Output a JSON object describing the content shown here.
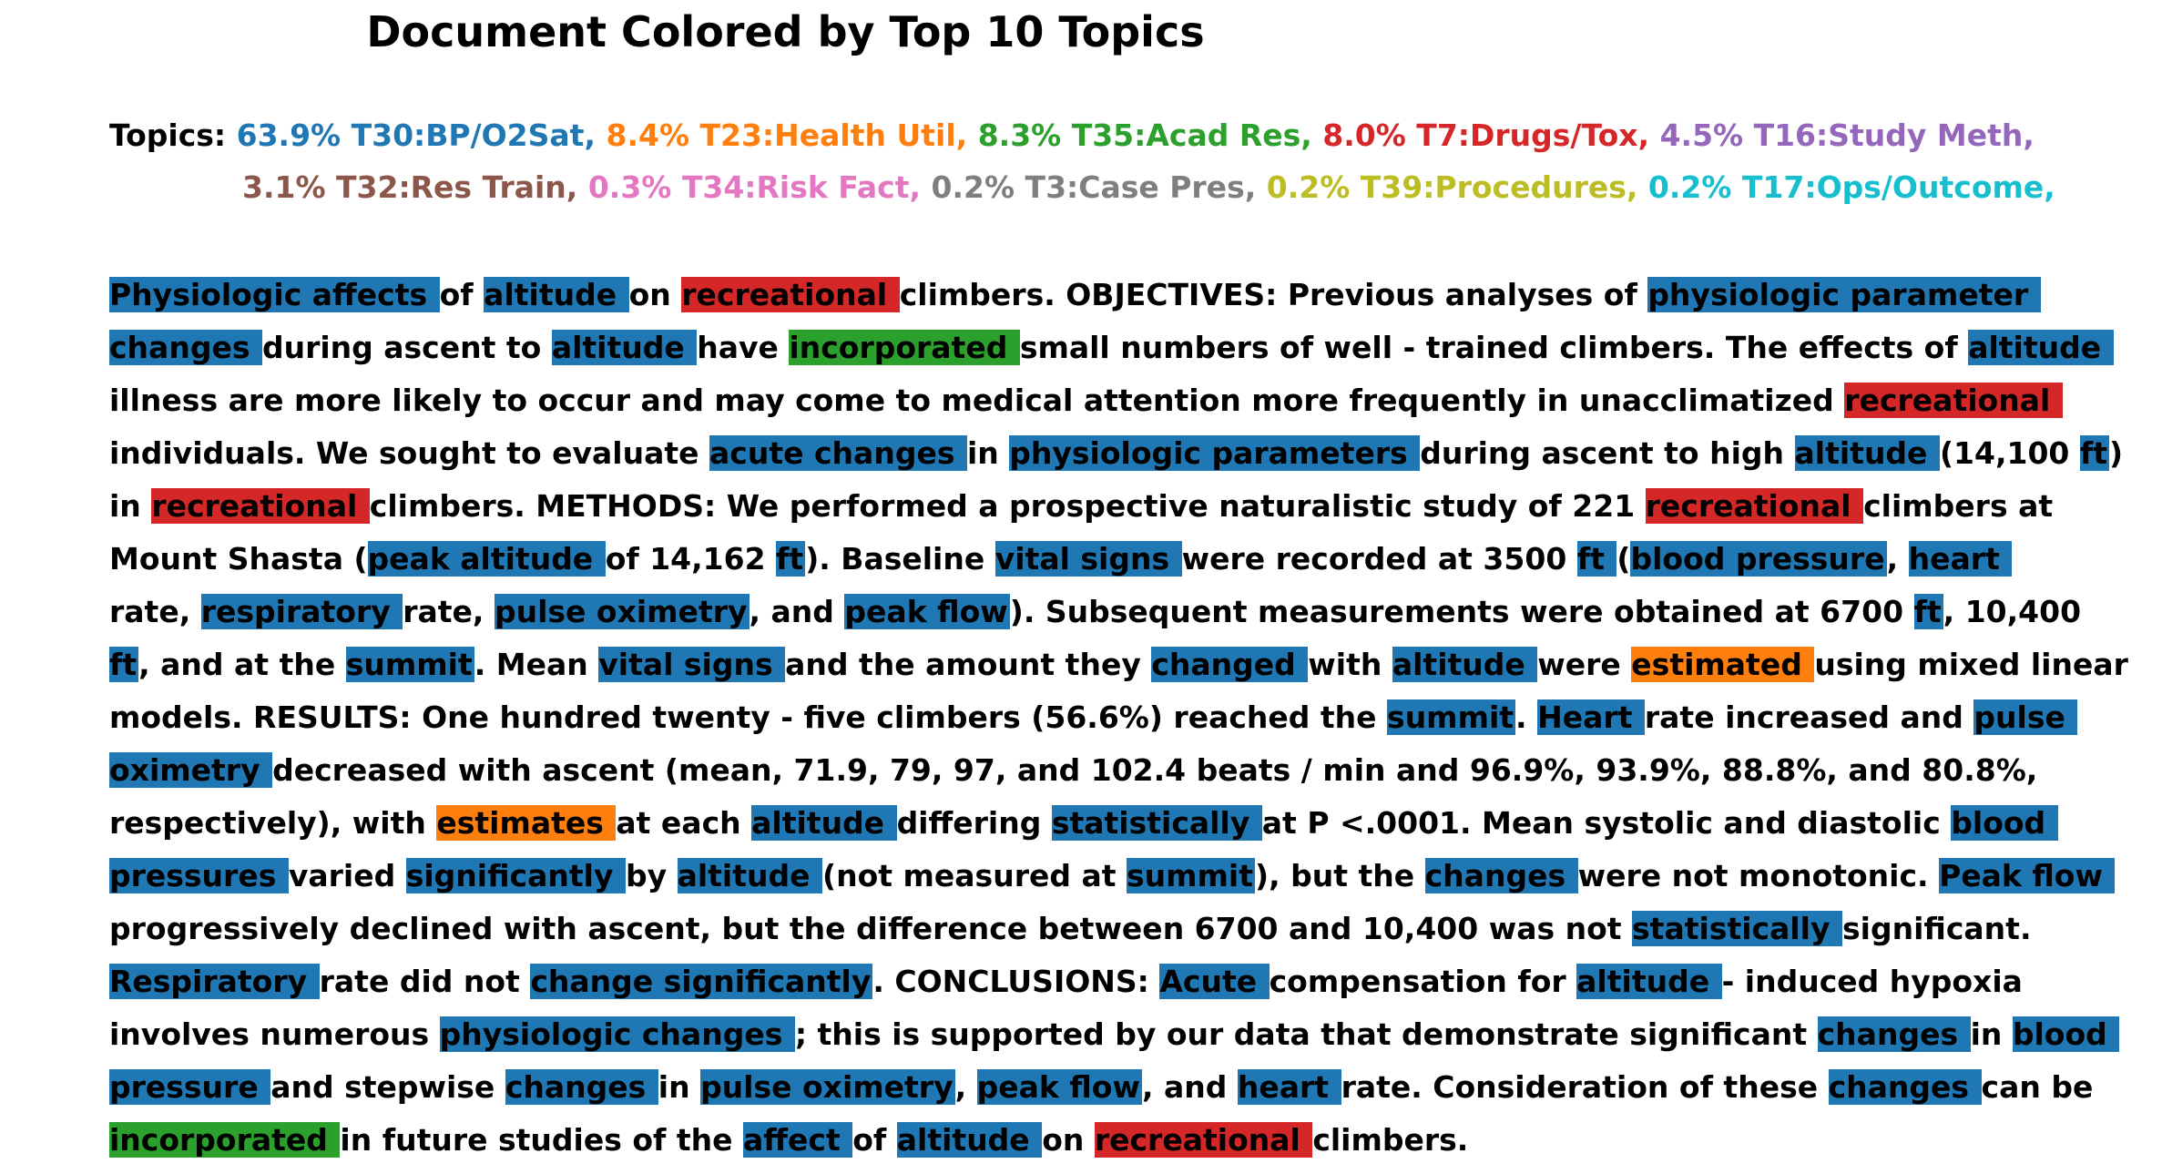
{
  "title": "Document Colored by Top 10 Topics",
  "topics_label": "Topics:",
  "topics_rows": [
    [
      {
        "text": "63.9% T30:BP/O2Sat,",
        "color": "#1f77b4"
      },
      {
        "text": "8.4% T23:Health Util,",
        "color": "#ff7f0e"
      },
      {
        "text": "8.3% T35:Acad Res,",
        "color": "#2ca02c"
      },
      {
        "text": "8.0% T7:Drugs/Tox,",
        "color": "#d62728"
      },
      {
        "text": "4.5% T16:Study Meth,",
        "color": "#9467bd"
      }
    ],
    [
      {
        "text": "3.1% T32:Res Train,",
        "color": "#8c564b"
      },
      {
        "text": "0.3% T34:Risk Fact,",
        "color": "#e377c2"
      },
      {
        "text": "0.2% T3:Case Pres,",
        "color": "#7f7f7f"
      },
      {
        "text": "0.2% T39:Procedures,",
        "color": "#bcbd22"
      },
      {
        "text": "0.2% T17:Ops/Outcome,",
        "color": "#17becf"
      }
    ]
  ],
  "colors": {
    "T30": "#1f77b4",
    "T23": "#ff7f0e",
    "T35": "#2ca02c",
    "T7": "#d62728"
  },
  "document_lines": [
    [
      [
        "Physiologic affects ",
        "T30"
      ],
      [
        "of ",
        ""
      ],
      [
        "altitude ",
        "T30"
      ],
      [
        "on ",
        ""
      ],
      [
        "recreational ",
        "T7"
      ],
      [
        "climbers. OBJECTIVES: Previous analyses of ",
        ""
      ],
      [
        "physiologic parameter ",
        "T30"
      ]
    ],
    [
      [
        "changes ",
        "T30"
      ],
      [
        "during ascent to ",
        ""
      ],
      [
        "altitude ",
        "T30"
      ],
      [
        "have ",
        ""
      ],
      [
        "incorporated ",
        "T35"
      ],
      [
        "small numbers of well - trained climbers. The effects of ",
        ""
      ],
      [
        "altitude ",
        "T30"
      ]
    ],
    [
      [
        "illness are more likely to occur and may come to medical attention more frequently in unacclimatized ",
        ""
      ],
      [
        "recreational ",
        "T7"
      ]
    ],
    [
      [
        "individuals. We sought to evaluate ",
        ""
      ],
      [
        "acute changes ",
        "T30"
      ],
      [
        "in ",
        ""
      ],
      [
        "physiologic parameters ",
        "T30"
      ],
      [
        "during ascent to high ",
        ""
      ],
      [
        "altitude ",
        "T30"
      ],
      [
        "(14,100 ",
        ""
      ],
      [
        "ft",
        "T30"
      ],
      [
        ")",
        ""
      ]
    ],
    [
      [
        "in ",
        ""
      ],
      [
        "recreational ",
        "T7"
      ],
      [
        "climbers. METHODS: We performed a prospective naturalistic study of 221 ",
        ""
      ],
      [
        "recreational ",
        "T7"
      ],
      [
        "climbers at",
        ""
      ]
    ],
    [
      [
        "Mount Shasta (",
        ""
      ],
      [
        "peak altitude ",
        "T30"
      ],
      [
        "of 14,162 ",
        ""
      ],
      [
        "ft",
        "T30"
      ],
      [
        "). Baseline ",
        ""
      ],
      [
        "vital signs ",
        "T30"
      ],
      [
        "were recorded at 3500 ",
        ""
      ],
      [
        "ft ",
        "T30"
      ],
      [
        "(",
        ""
      ],
      [
        "blood pressure",
        "T30"
      ],
      [
        ", ",
        ""
      ],
      [
        "heart ",
        "T30"
      ]
    ],
    [
      [
        "rate, ",
        ""
      ],
      [
        "respiratory ",
        "T30"
      ],
      [
        "rate, ",
        ""
      ],
      [
        "pulse oximetry",
        "T30"
      ],
      [
        ", and ",
        ""
      ],
      [
        "peak flow",
        "T30"
      ],
      [
        "). Subsequent measurements were obtained at 6700 ",
        ""
      ],
      [
        "ft",
        "T30"
      ],
      [
        ", 10,400",
        ""
      ]
    ],
    [
      [
        "ft",
        "T30"
      ],
      [
        ", and at the ",
        ""
      ],
      [
        "summit",
        "T30"
      ],
      [
        ". Mean ",
        ""
      ],
      [
        "vital signs ",
        "T30"
      ],
      [
        "and the amount they ",
        ""
      ],
      [
        "changed ",
        "T30"
      ],
      [
        "with ",
        ""
      ],
      [
        "altitude ",
        "T30"
      ],
      [
        "were ",
        ""
      ],
      [
        "estimated ",
        "T23"
      ],
      [
        "using mixed linear",
        ""
      ]
    ],
    [
      [
        "models. RESULTS: One hundred twenty - five climbers (56.6%) reached the ",
        ""
      ],
      [
        "summit",
        "T30"
      ],
      [
        ". ",
        ""
      ],
      [
        "Heart ",
        "T30"
      ],
      [
        "rate increased and ",
        ""
      ],
      [
        "pulse ",
        "T30"
      ]
    ],
    [
      [
        "oximetry ",
        "T30"
      ],
      [
        "decreased with ascent (mean, 71.9, 79, 97, and 102.4 beats / min and 96.9%, 93.9%, 88.8%, and 80.8%,",
        ""
      ]
    ],
    [
      [
        "respectively), with ",
        ""
      ],
      [
        "estimates ",
        "T23"
      ],
      [
        "at each ",
        ""
      ],
      [
        "altitude ",
        "T30"
      ],
      [
        "differing ",
        ""
      ],
      [
        "statistically ",
        "T30"
      ],
      [
        "at P <.0001. Mean systolic and diastolic ",
        ""
      ],
      [
        "blood ",
        "T30"
      ]
    ],
    [
      [
        "pressures ",
        "T30"
      ],
      [
        "varied ",
        ""
      ],
      [
        "significantly ",
        "T30"
      ],
      [
        "by ",
        ""
      ],
      [
        "altitude ",
        "T30"
      ],
      [
        "(not measured at ",
        ""
      ],
      [
        "summit",
        "T30"
      ],
      [
        "), but the ",
        ""
      ],
      [
        "changes ",
        "T30"
      ],
      [
        "were not monotonic. ",
        ""
      ],
      [
        "Peak flow ",
        "T30"
      ]
    ],
    [
      [
        "progressively declined with ascent, but the difference between 6700 and 10,400 was not ",
        ""
      ],
      [
        "statistically ",
        "T30"
      ],
      [
        "significant.",
        ""
      ]
    ],
    [
      [
        "Respiratory ",
        "T30"
      ],
      [
        "rate did not ",
        ""
      ],
      [
        "change significantly",
        "T30"
      ],
      [
        ". CONCLUSIONS: ",
        ""
      ],
      [
        "Acute ",
        "T30"
      ],
      [
        "compensation for ",
        ""
      ],
      [
        "altitude ",
        "T30"
      ],
      [
        "- induced hypoxia",
        ""
      ]
    ],
    [
      [
        "involves numerous ",
        ""
      ],
      [
        "physiologic changes ",
        "T30"
      ],
      [
        "; this is supported by our data that demonstrate significant ",
        ""
      ],
      [
        "changes ",
        "T30"
      ],
      [
        "in ",
        ""
      ],
      [
        "blood ",
        "T30"
      ]
    ],
    [
      [
        "pressure ",
        "T30"
      ],
      [
        "and stepwise ",
        ""
      ],
      [
        "changes ",
        "T30"
      ],
      [
        "in ",
        ""
      ],
      [
        "pulse oximetry",
        "T30"
      ],
      [
        ", ",
        ""
      ],
      [
        "peak flow",
        "T30"
      ],
      [
        ", and ",
        ""
      ],
      [
        "heart ",
        "T30"
      ],
      [
        "rate. Consideration of these ",
        ""
      ],
      [
        "changes ",
        "T30"
      ],
      [
        "can be",
        ""
      ]
    ],
    [
      [
        "incorporated ",
        "T35"
      ],
      [
        "in future studies of the ",
        ""
      ],
      [
        "affect ",
        "T30"
      ],
      [
        "of ",
        ""
      ],
      [
        "altitude ",
        "T30"
      ],
      [
        "on ",
        ""
      ],
      [
        "recreational ",
        "T7"
      ],
      [
        "climbers.",
        ""
      ]
    ]
  ]
}
